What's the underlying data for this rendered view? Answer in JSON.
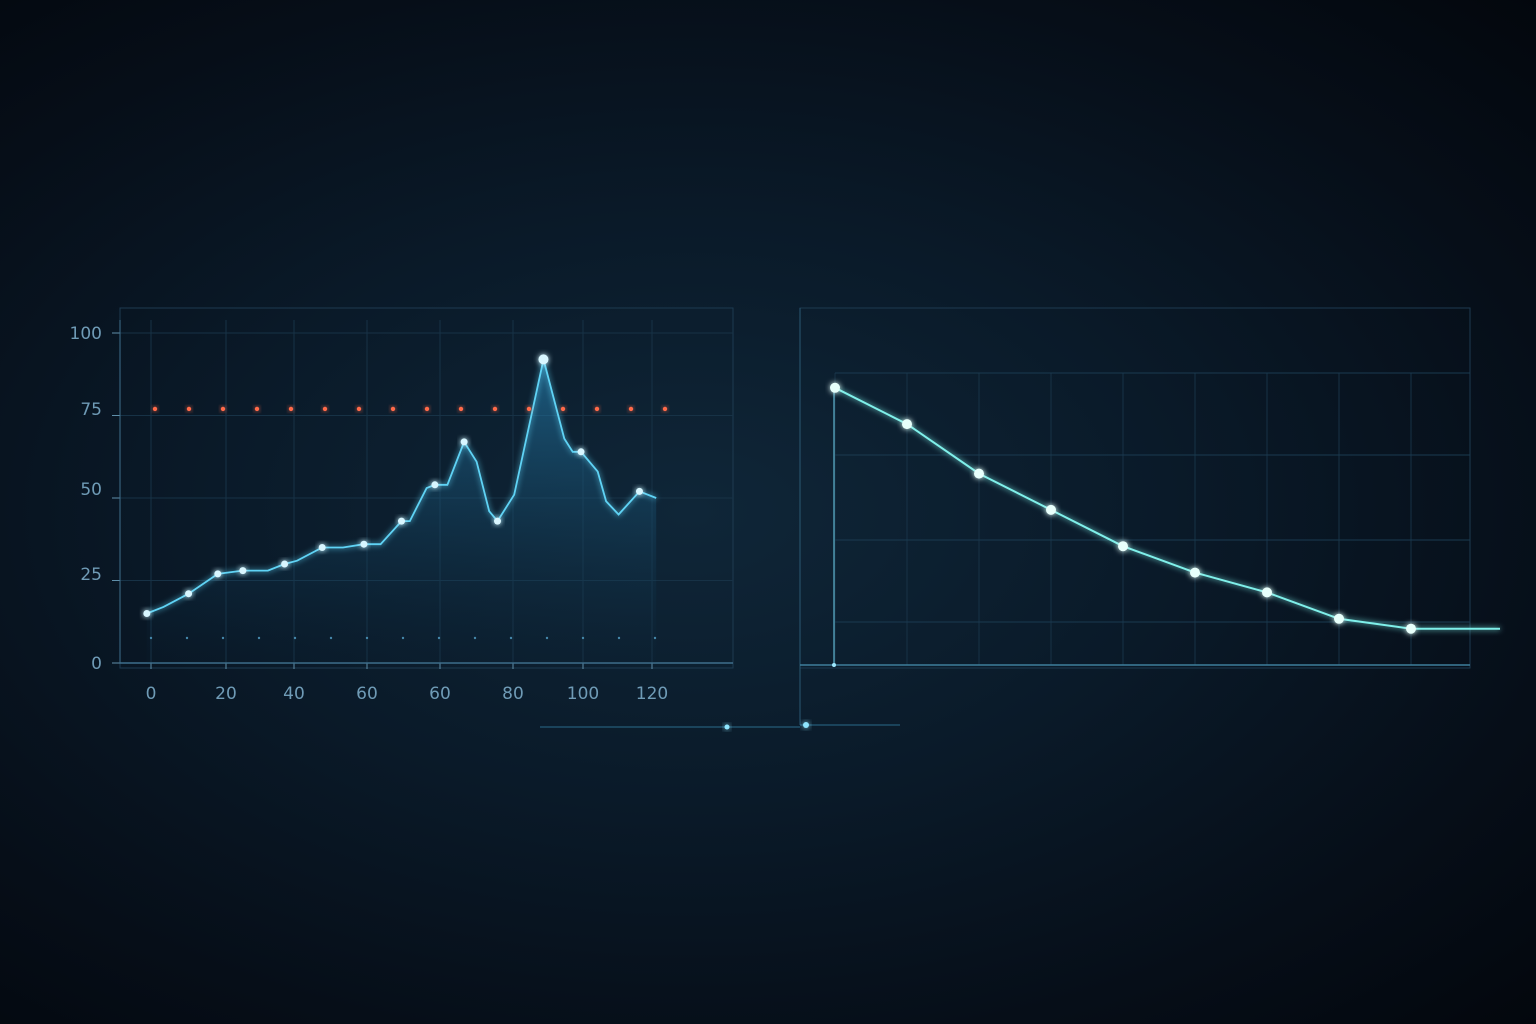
{
  "chart_data": [
    {
      "type": "line",
      "x_tick_labels": [
        "0",
        "20",
        "40",
        "60",
        "60",
        "80",
        "100",
        "120"
      ],
      "y_tick_labels": [
        "0",
        "25",
        "50",
        "75",
        "100"
      ],
      "ylim": [
        0,
        100
      ],
      "xlim": [
        -5,
        130
      ],
      "grid": true,
      "series": [
        {
          "values_x": [
            -1,
            3,
            9,
            16,
            22,
            27,
            28,
            32,
            35,
            41,
            46,
            51,
            55,
            60,
            62,
            66,
            68,
            71,
            75,
            78,
            81,
            83,
            87,
            94,
            99,
            101,
            103,
            107,
            109,
            112,
            117,
            121
          ],
          "values_y": [
            15,
            17,
            21,
            27,
            28,
            28,
            28,
            30,
            31,
            35,
            35,
            36,
            36,
            43,
            43,
            53,
            54,
            54,
            67,
            61,
            46,
            43,
            51,
            92,
            68,
            64,
            64,
            58,
            49,
            45,
            52,
            50
          ],
          "color": "#5fd3f5"
        }
      ],
      "markers_x": [
        -1,
        9,
        16,
        22,
        32,
        41,
        51,
        60,
        68,
        75,
        83,
        94,
        103,
        117
      ],
      "threshold": {
        "y": 77,
        "color": "#ff3b2a"
      }
    },
    {
      "type": "line",
      "x": [
        1,
        2,
        3,
        4,
        5,
        6,
        7,
        8,
        9
      ],
      "values": [
        84,
        73,
        58,
        47,
        36,
        28,
        22,
        14,
        11
      ],
      "ylim": [
        0,
        100
      ],
      "grid": true,
      "color": "#7ff0ea"
    }
  ]
}
